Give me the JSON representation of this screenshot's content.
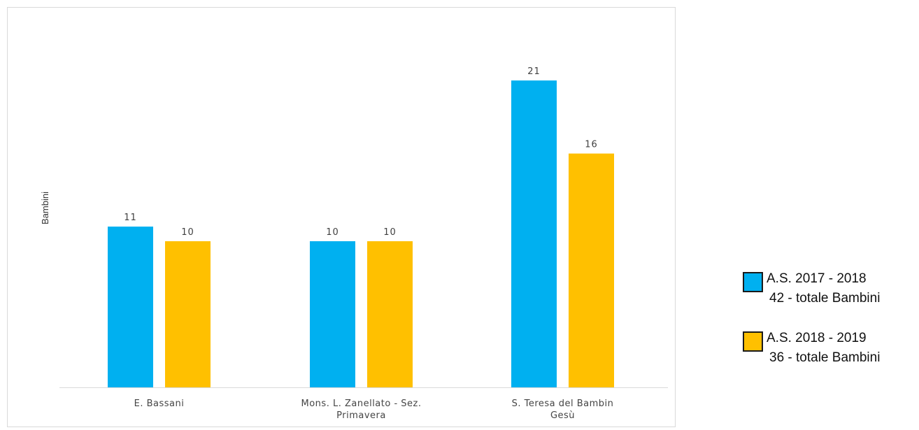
{
  "chart_data": {
    "type": "bar",
    "categories": [
      [
        "E. Bassani"
      ],
      [
        "Mons. L. Zanellato - Sez.",
        "Primavera"
      ],
      [
        "S. Teresa del Bambin",
        "Gesù"
      ]
    ],
    "series": [
      {
        "name": "A.S. 2017 - 2018",
        "subtitle": "42 - totale Bambini",
        "color": "#00b0f0",
        "values": [
          11,
          10,
          21
        ]
      },
      {
        "name": "A.S. 2018 - 2019",
        "subtitle": "36 - totale Bambini",
        "color": "#ffc000",
        "values": [
          10,
          10,
          16
        ]
      }
    ],
    "ylabel": "Bambini",
    "xlabel": "",
    "ylim": [
      0,
      25
    ],
    "grid": false,
    "legend_position": "right"
  }
}
